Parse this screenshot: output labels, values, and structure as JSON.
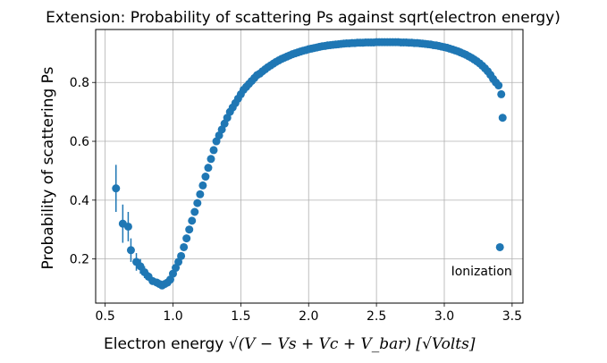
{
  "chart_data": {
    "type": "scatter",
    "title": "Extension: Probability of scattering Ps against sqrt(electron energy)",
    "xlabel_prefix": "Electron energy ",
    "xlabel_math": "√(V − Vs + Vc + V_bar) [√Volts]",
    "ylabel": "Probability of scattering Ps",
    "xlim": [
      0.43,
      3.58
    ],
    "ylim": [
      0.05,
      0.98
    ],
    "xticks": [
      0.5,
      1.0,
      1.5,
      2.0,
      2.5,
      3.0,
      3.5
    ],
    "xtick_labels": [
      "0.5",
      "1.0",
      "1.5",
      "2.0",
      "2.5",
      "3.0",
      "3.5"
    ],
    "yticks": [
      0.2,
      0.4,
      0.6,
      0.8
    ],
    "ytick_labels": [
      "0.2",
      "0.4",
      "0.6",
      "0.8"
    ],
    "grid": true,
    "marker_color": "#1f77b4",
    "annotations": [
      {
        "text": "Ionization",
        "x": 3.05,
        "y": 0.16
      }
    ],
    "errorbar_points": [
      {
        "x": 0.58,
        "y": 0.44,
        "err": 0.08
      },
      {
        "x": 0.63,
        "y": 0.32,
        "err": 0.065
      },
      {
        "x": 0.67,
        "y": 0.31,
        "err": 0.05
      },
      {
        "x": 0.69,
        "y": 0.23,
        "err": 0.04
      },
      {
        "x": 0.73,
        "y": 0.19,
        "err": 0.03
      },
      {
        "x": 0.76,
        "y": 0.175,
        "err": 0.025
      },
      {
        "x": 0.79,
        "y": 0.155,
        "err": 0.02
      },
      {
        "x": 0.82,
        "y": 0.14,
        "err": 0.015
      },
      {
        "x": 0.85,
        "y": 0.125,
        "err": 0.012
      },
      {
        "x": 0.88,
        "y": 0.12,
        "err": 0.01
      }
    ],
    "curve_points": [
      [
        0.9,
        0.115
      ],
      [
        0.92,
        0.11
      ],
      [
        0.94,
        0.115
      ],
      [
        0.96,
        0.12
      ],
      [
        0.98,
        0.13
      ],
      [
        1.0,
        0.15
      ],
      [
        1.02,
        0.17
      ],
      [
        1.04,
        0.19
      ],
      [
        1.06,
        0.21
      ],
      [
        1.08,
        0.24
      ],
      [
        1.1,
        0.27
      ],
      [
        1.12,
        0.3
      ],
      [
        1.14,
        0.33
      ],
      [
        1.16,
        0.36
      ],
      [
        1.18,
        0.39
      ],
      [
        1.2,
        0.42
      ],
      [
        1.22,
        0.45
      ],
      [
        1.24,
        0.48
      ],
      [
        1.26,
        0.51
      ],
      [
        1.28,
        0.54
      ],
      [
        1.3,
        0.57
      ],
      [
        1.32,
        0.6
      ],
      [
        1.34,
        0.62
      ],
      [
        1.36,
        0.64
      ],
      [
        1.38,
        0.66
      ],
      [
        1.4,
        0.68
      ],
      [
        1.42,
        0.7
      ],
      [
        1.44,
        0.715
      ],
      [
        1.46,
        0.73
      ],
      [
        1.48,
        0.745
      ],
      [
        1.5,
        0.76
      ],
      [
        1.52,
        0.775
      ],
      [
        1.54,
        0.785
      ],
      [
        1.56,
        0.795
      ],
      [
        1.58,
        0.805
      ],
      [
        1.6,
        0.815
      ],
      [
        1.62,
        0.825
      ],
      [
        1.64,
        0.83
      ],
      [
        1.66,
        0.838
      ],
      [
        1.68,
        0.845
      ],
      [
        1.7,
        0.852
      ],
      [
        1.72,
        0.858
      ],
      [
        1.74,
        0.864
      ],
      [
        1.76,
        0.87
      ],
      [
        1.78,
        0.875
      ],
      [
        1.8,
        0.88
      ],
      [
        1.82,
        0.884
      ],
      [
        1.84,
        0.888
      ],
      [
        1.86,
        0.892
      ],
      [
        1.88,
        0.896
      ],
      [
        1.9,
        0.899
      ],
      [
        1.92,
        0.902
      ],
      [
        1.94,
        0.905
      ],
      [
        1.96,
        0.908
      ],
      [
        1.98,
        0.91
      ],
      [
        2.0,
        0.913
      ],
      [
        2.02,
        0.915
      ],
      [
        2.04,
        0.917
      ],
      [
        2.06,
        0.919
      ],
      [
        2.08,
        0.921
      ],
      [
        2.1,
        0.923
      ],
      [
        2.12,
        0.924
      ],
      [
        2.14,
        0.926
      ],
      [
        2.16,
        0.927
      ],
      [
        2.18,
        0.928
      ],
      [
        2.2,
        0.929
      ],
      [
        2.22,
        0.93
      ],
      [
        2.24,
        0.931
      ],
      [
        2.26,
        0.932
      ],
      [
        2.28,
        0.933
      ],
      [
        2.3,
        0.933
      ],
      [
        2.32,
        0.934
      ],
      [
        2.34,
        0.934
      ],
      [
        2.36,
        0.935
      ],
      [
        2.38,
        0.935
      ],
      [
        2.4,
        0.935
      ],
      [
        2.42,
        0.936
      ],
      [
        2.44,
        0.936
      ],
      [
        2.46,
        0.936
      ],
      [
        2.48,
        0.936
      ],
      [
        2.5,
        0.937
      ],
      [
        2.52,
        0.937
      ],
      [
        2.54,
        0.937
      ],
      [
        2.56,
        0.937
      ],
      [
        2.58,
        0.937
      ],
      [
        2.6,
        0.937
      ],
      [
        2.62,
        0.937
      ],
      [
        2.64,
        0.937
      ],
      [
        2.66,
        0.937
      ],
      [
        2.68,
        0.936
      ],
      [
        2.7,
        0.936
      ],
      [
        2.72,
        0.936
      ],
      [
        2.74,
        0.935
      ],
      [
        2.76,
        0.935
      ],
      [
        2.78,
        0.934
      ],
      [
        2.8,
        0.934
      ],
      [
        2.82,
        0.933
      ],
      [
        2.84,
        0.932
      ],
      [
        2.86,
        0.931
      ],
      [
        2.88,
        0.93
      ],
      [
        2.9,
        0.929
      ],
      [
        2.92,
        0.927
      ],
      [
        2.94,
        0.926
      ],
      [
        2.96,
        0.924
      ],
      [
        2.98,
        0.922
      ],
      [
        3.0,
        0.92
      ],
      [
        3.02,
        0.918
      ],
      [
        3.04,
        0.915
      ],
      [
        3.06,
        0.912
      ],
      [
        3.08,
        0.909
      ],
      [
        3.1,
        0.906
      ],
      [
        3.12,
        0.902
      ],
      [
        3.14,
        0.898
      ],
      [
        3.16,
        0.894
      ],
      [
        3.18,
        0.889
      ],
      [
        3.2,
        0.884
      ],
      [
        3.22,
        0.878
      ],
      [
        3.24,
        0.872
      ],
      [
        3.26,
        0.865
      ],
      [
        3.28,
        0.857
      ],
      [
        3.3,
        0.848
      ],
      [
        3.32,
        0.838
      ],
      [
        3.34,
        0.826
      ],
      [
        3.36,
        0.812
      ],
      [
        3.38,
        0.8
      ],
      [
        3.4,
        0.79
      ],
      [
        3.42,
        0.76
      ],
      [
        3.43,
        0.68
      ],
      [
        3.41,
        0.24
      ]
    ]
  }
}
